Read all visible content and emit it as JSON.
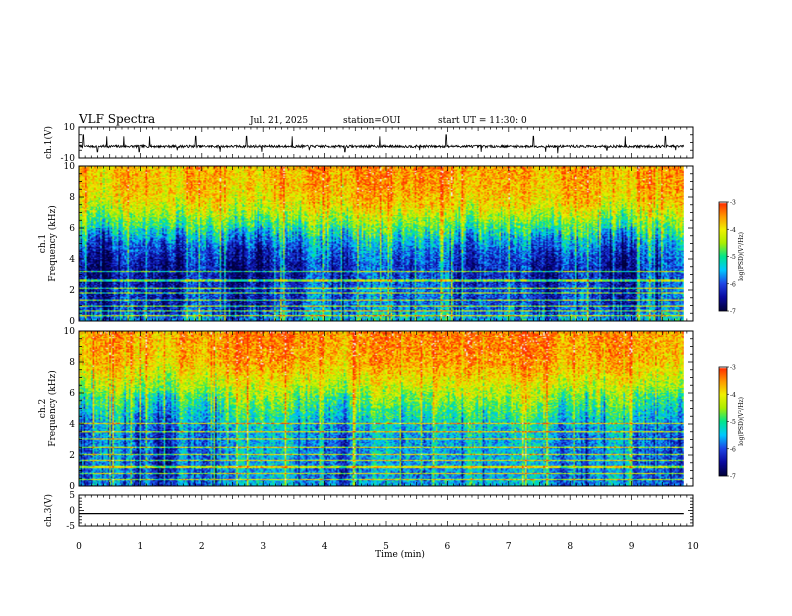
{
  "header": {
    "title": "VLF Spectra",
    "date": "Jul. 21, 2025",
    "station": "station=OUI",
    "start": "start UT =  11:30: 0"
  },
  "colors": {
    "ch1_waveform": "#000000",
    "ch3_waveform": "#000000",
    "colormap": [
      "#00003c",
      "#0a0aa0",
      "#1e46e6",
      "#00c8ff",
      "#00e68c",
      "#aaee00",
      "#f0f000",
      "#ff9600",
      "#ff2a00",
      "#f0f0f0"
    ]
  },
  "chart_data": [
    {
      "type": "line",
      "name": "ch1-waveform",
      "ylabel": "ch.1(V)",
      "ylim": [
        -10,
        10
      ],
      "yticks": [
        "10",
        "-10"
      ],
      "xlim": [
        0,
        10
      ],
      "baseline_v": -2.5,
      "noise_v": 0.8,
      "spikes": [
        {
          "t": 0.07,
          "v": 5
        },
        {
          "t": 0.3,
          "v": -6
        },
        {
          "t": 0.45,
          "v": 4
        },
        {
          "t": 0.73,
          "v": 4
        },
        {
          "t": 0.98,
          "v": -6
        },
        {
          "t": 1.15,
          "v": 4
        },
        {
          "t": 1.6,
          "v": -5
        },
        {
          "t": 1.9,
          "v": 4
        },
        {
          "t": 2.3,
          "v": -6
        },
        {
          "t": 2.73,
          "v": 4
        },
        {
          "t": 2.98,
          "v": -6
        },
        {
          "t": 3.47,
          "v": 4
        },
        {
          "t": 3.75,
          "v": -5
        },
        {
          "t": 4.33,
          "v": -6
        },
        {
          "t": 4.9,
          "v": 4
        },
        {
          "t": 5.55,
          "v": -5
        },
        {
          "t": 5.98,
          "v": 5
        },
        {
          "t": 6.55,
          "v": -6
        },
        {
          "t": 7.4,
          "v": 4
        },
        {
          "t": 7.6,
          "v": -6
        },
        {
          "t": 7.8,
          "v": -7
        },
        {
          "t": 8.6,
          "v": -5
        },
        {
          "t": 8.9,
          "v": 4
        },
        {
          "t": 9.55,
          "v": 4
        },
        {
          "t": 9.72,
          "v": -5
        }
      ]
    },
    {
      "type": "heatmap",
      "name": "ch1-spectrogram",
      "ylabel": "ch.1\nFrequency (kHz)",
      "ylim": [
        0,
        10
      ],
      "yticks": [
        "0",
        "2",
        "4",
        "6",
        "8",
        "10"
      ],
      "xlim": [
        0,
        10
      ],
      "colorbar": {
        "label": "log(PSD)(V²/Hz)",
        "ticks": [
          "-3",
          "-4",
          "-5",
          "-6",
          "-7"
        ],
        "range": [
          -7,
          -3
        ]
      },
      "profile_khz": [
        0,
        1,
        2,
        3,
        4,
        5,
        6,
        7,
        8,
        10
      ],
      "profile_log_psd": [
        -5.4,
        -6.2,
        -6.0,
        -6.4,
        -6.2,
        -5.8,
        -5.0,
        -4.3,
        -3.8,
        -3.6
      ],
      "tones_khz": [
        0.3,
        0.6,
        0.9,
        1.3,
        1.8,
        2.1,
        2.6,
        3.2
      ]
    },
    {
      "type": "heatmap",
      "name": "ch2-spectrogram",
      "ylabel": "ch.2\nFrequency (kHz)",
      "ylim": [
        0,
        10
      ],
      "yticks": [
        "0",
        "2",
        "4",
        "6",
        "8",
        "10"
      ],
      "xlim": [
        0,
        10
      ],
      "colorbar": {
        "label": "log(PSD)(V²/Hz)",
        "ticks": [
          "-3",
          "-4",
          "-5",
          "-6",
          "-7"
        ],
        "range": [
          -7,
          -3
        ]
      },
      "profile_khz": [
        0,
        1,
        2,
        3,
        4,
        5,
        6,
        7,
        8,
        10
      ],
      "profile_log_psd": [
        -5.6,
        -5.8,
        -5.6,
        -5.7,
        -5.4,
        -5.0,
        -4.5,
        -4.0,
        -3.6,
        -3.4
      ],
      "tones_khz": [
        0.4,
        0.8,
        1.2,
        1.6,
        2.0,
        2.5,
        3.0,
        3.5,
        4.0
      ]
    },
    {
      "type": "line",
      "name": "ch3-waveform",
      "ylabel": "ch.3(V)",
      "ylim": [
        -5,
        5
      ],
      "yticks": [
        "5",
        "0",
        "-5"
      ],
      "xlim": [
        0,
        10
      ],
      "baseline_v": -1,
      "noise_v": 0
    }
  ],
  "xaxis": {
    "label": "Time (min)",
    "ticks": [
      "0",
      "1",
      "2",
      "3",
      "4",
      "5",
      "6",
      "7",
      "8",
      "9",
      "10"
    ]
  }
}
